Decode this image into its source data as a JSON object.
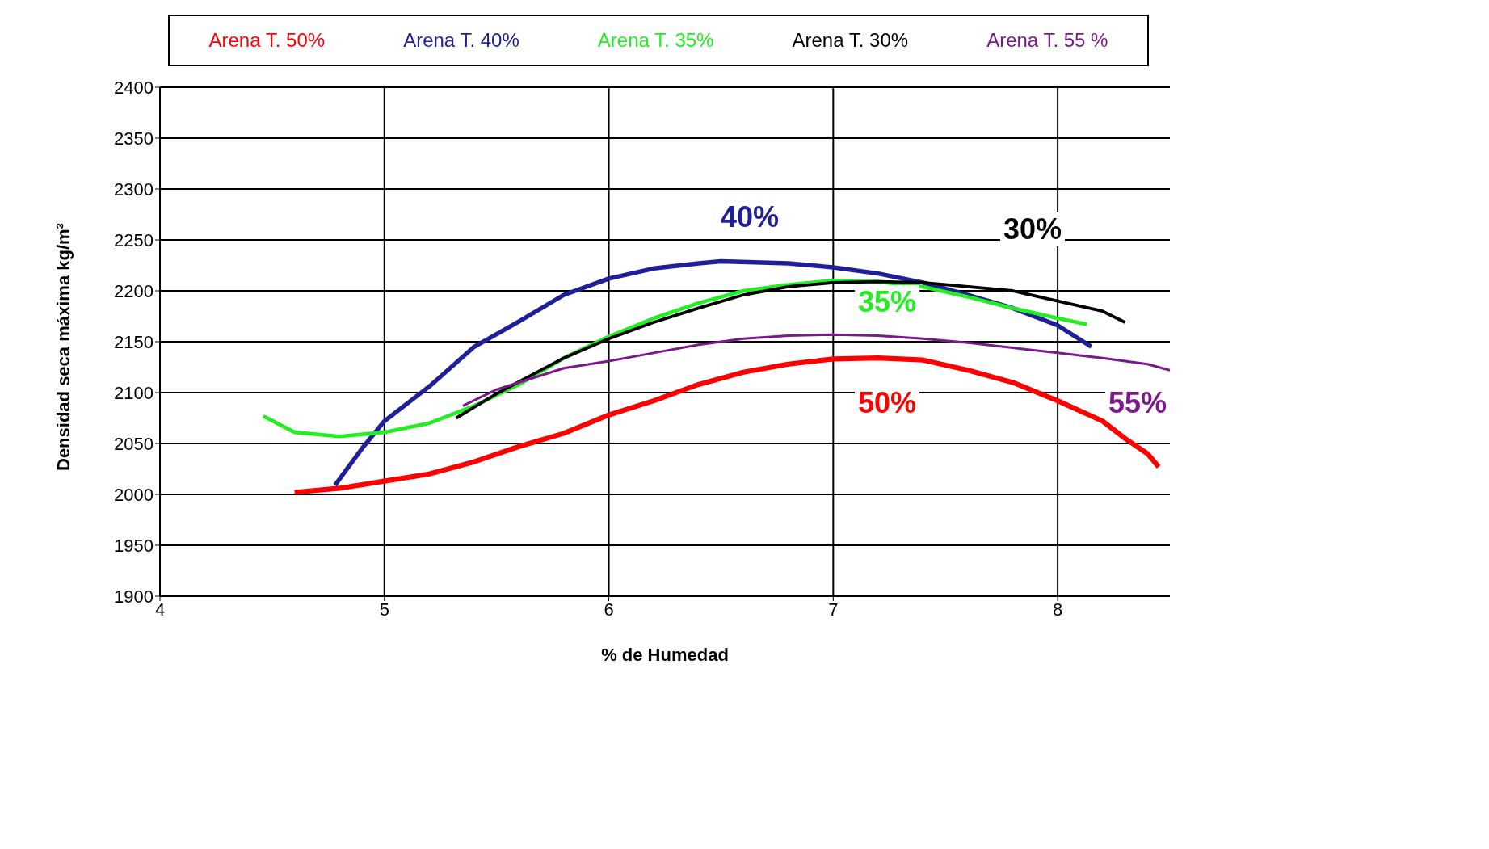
{
  "chart_data": {
    "type": "line",
    "xlabel": "% de Humedad",
    "ylabel": "Densidad seca máxima kg/m³",
    "xlim": [
      4,
      8.5
    ],
    "xticks": [
      4,
      5,
      6,
      7,
      8
    ],
    "ylim": [
      1900,
      2400
    ],
    "yticks": [
      1900,
      1950,
      2000,
      2050,
      2100,
      2150,
      2200,
      2250,
      2300,
      2350,
      2400
    ],
    "grid": true,
    "legend": "top",
    "marker": "none",
    "line_style": "solid",
    "series": [
      {
        "name": "Arena T. 50%",
        "color": "#ff0000",
        "x": [
          4.6,
          4.8,
          5.0,
          5.2,
          5.4,
          5.6,
          5.8,
          6.0,
          6.2,
          6.4,
          6.6,
          6.8,
          7.0,
          7.2,
          7.4,
          7.6,
          7.8,
          8.0,
          8.2,
          8.3,
          8.4,
          8.45
        ],
        "values": [
          2002,
          2006,
          2013,
          2020,
          2032,
          2047,
          2060,
          2078,
          2092,
          2108,
          2120,
          2128,
          2133,
          2134,
          2132,
          2122,
          2110,
          2092,
          2072,
          2055,
          2040,
          2027
        ]
      },
      {
        "name": "Arena T. 40%",
        "color": "#1f1f99",
        "x": [
          4.78,
          4.9,
          5.0,
          5.2,
          5.4,
          5.6,
          5.8,
          6.0,
          6.2,
          6.4,
          6.5,
          6.8,
          7.0,
          7.2,
          7.4,
          7.6,
          7.8,
          8.0,
          8.15
        ],
        "values": [
          2009,
          2045,
          2072,
          2106,
          2145,
          2170,
          2196,
          2212,
          2222,
          2227,
          2229,
          2227,
          2223,
          2217,
          2208,
          2196,
          2183,
          2166,
          2145
        ]
      },
      {
        "name": "Arena T. 35%",
        "color": "#22ee22",
        "x": [
          4.46,
          4.6,
          4.8,
          5.0,
          5.2,
          5.4,
          5.6,
          5.8,
          6.0,
          6.2,
          6.4,
          6.6,
          6.8,
          7.0,
          7.2,
          7.4,
          7.6,
          7.8,
          8.0,
          8.13
        ],
        "values": [
          2077,
          2061,
          2057,
          2061,
          2070,
          2087,
          2108,
          2134,
          2155,
          2173,
          2188,
          2200,
          2206,
          2210,
          2209,
          2204,
          2194,
          2183,
          2173,
          2167
        ]
      },
      {
        "name": "Arena T. 30%",
        "color": "#000000",
        "x": [
          5.32,
          5.5,
          5.8,
          6.0,
          6.2,
          6.4,
          6.6,
          6.8,
          7.0,
          7.2,
          7.4,
          7.6,
          7.8,
          8.0,
          8.2,
          8.3
        ],
        "values": [
          2075,
          2099,
          2134,
          2153,
          2169,
          2183,
          2196,
          2204,
          2208,
          2209,
          2208,
          2204,
          2200,
          2190,
          2180,
          2169
        ]
      },
      {
        "name": "Arena T. 55 %",
        "color": "#7a1a8a",
        "x": [
          5.35,
          5.5,
          5.8,
          6.0,
          6.2,
          6.4,
          6.6,
          6.8,
          7.0,
          7.2,
          7.4,
          7.6,
          7.8,
          8.0,
          8.2,
          8.4,
          8.5
        ],
        "values": [
          2087,
          2103,
          2124,
          2131,
          2139,
          2147,
          2153,
          2156,
          2157,
          2156,
          2153,
          2149,
          2144,
          2139,
          2134,
          2128,
          2122
        ]
      }
    ],
    "annotations": [
      "50%",
      "40%",
      "35%",
      "30%",
      "55%"
    ]
  }
}
